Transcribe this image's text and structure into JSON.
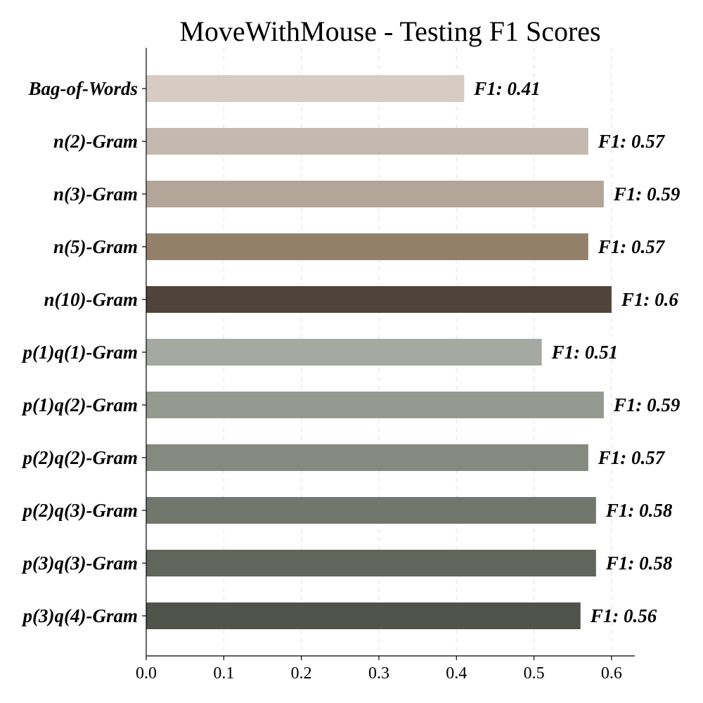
{
  "chart_data": {
    "type": "bar",
    "orientation": "horizontal",
    "title": "MoveWithMouse - Testing F1 Scores",
    "xlabel": "",
    "ylabel": "",
    "xlim": [
      0,
      0.63
    ],
    "xticks": [
      0.0,
      0.1,
      0.2,
      0.3,
      0.4,
      0.5,
      0.6
    ],
    "xtick_labels": [
      "0.0",
      "0.1",
      "0.2",
      "0.3",
      "0.4",
      "0.5",
      "0.6"
    ],
    "grid": "x-dashed",
    "categories": [
      "Bag-of-Words",
      "n(2)-Gram",
      "n(3)-Gram",
      "n(5)-Gram",
      "n(10)-Gram",
      "p(1)q(1)-Gram",
      "p(1)q(2)-Gram",
      "p(2)q(2)-Gram",
      "p(2)q(3)-Gram",
      "p(3)q(3)-Gram",
      "p(3)q(4)-Gram"
    ],
    "values": [
      0.41,
      0.57,
      0.59,
      0.57,
      0.6,
      0.51,
      0.59,
      0.57,
      0.58,
      0.58,
      0.56
    ],
    "data_labels": [
      "F1: 0.41",
      "F1: 0.57",
      "F1: 0.59",
      "F1: 0.57",
      "F1: 0.6",
      "F1: 0.51",
      "F1: 0.59",
      "F1: 0.57",
      "F1: 0.58",
      "F1: 0.58",
      "F1: 0.56"
    ],
    "colors": [
      "#d8cbc2",
      "#c4b9ae",
      "#b3a597",
      "#947f6b",
      "#4f443a",
      "#a5a9a1",
      "#959a90",
      "#848a7f",
      "#71776c",
      "#60665b",
      "#4f534a"
    ]
  }
}
